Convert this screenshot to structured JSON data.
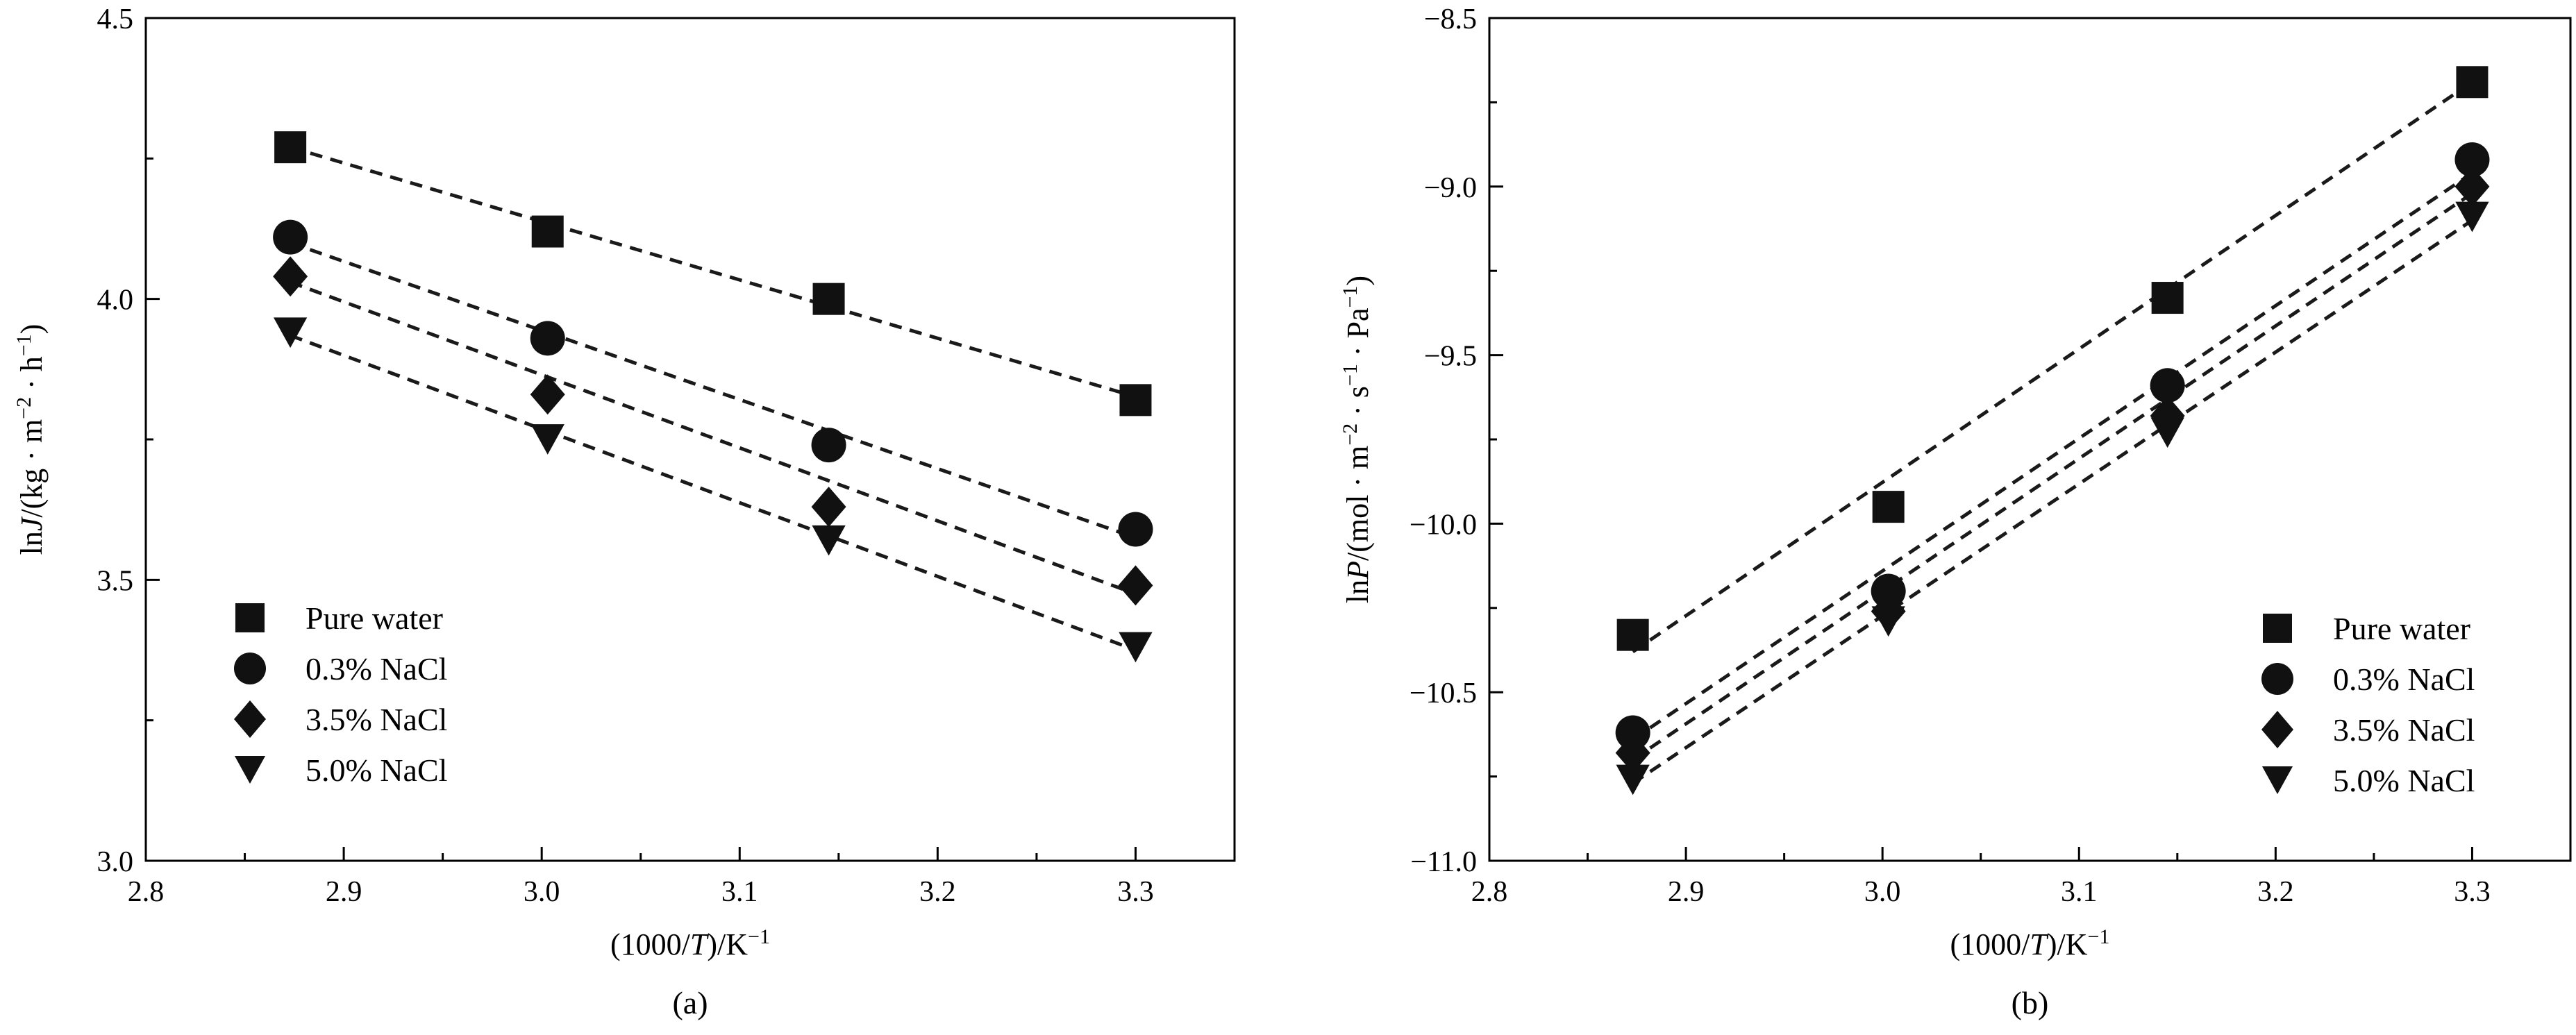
{
  "chart_data": [
    {
      "type": "scatter",
      "panel_label": "(a)",
      "xlabel_pre": "(1000/",
      "xlabel_it": "T",
      "xlabel_post": ")/K",
      "xlabel_sup": "−1",
      "ylabel_pre": "ln",
      "ylabel_it": "J",
      "ylabel_mid1": "/(kg · m",
      "ylabel_sup1": "−2",
      "ylabel_mid2": " · h",
      "ylabel_sup2": "−1",
      "ylabel_post": ")",
      "xlim": [
        2.8,
        3.35
      ],
      "ylim": [
        3.0,
        4.5
      ],
      "xticks": [
        2.8,
        2.9,
        3.0,
        3.1,
        3.2,
        3.3
      ],
      "xtick_labels": [
        "2.8",
        "2.9",
        "3.0",
        "3.1",
        "3.2",
        "3.3"
      ],
      "yticks": [
        3.0,
        3.5,
        4.0,
        4.5
      ],
      "ytick_labels": [
        "3.0",
        "3.5",
        "4.0",
        "4.5"
      ],
      "legend_position": "bottom-left",
      "x": [
        2.873,
        3.003,
        3.145,
        3.3
      ],
      "series": [
        {
          "name": "Pure water",
          "marker": "square",
          "values": [
            4.27,
            4.12,
            4.0,
            3.82
          ],
          "fit": [
            4.27,
            3.826
          ]
        },
        {
          "name": "0.3% NaCl",
          "marker": "circle",
          "values": [
            4.11,
            3.93,
            3.74,
            3.59
          ],
          "fit": [
            4.1,
            3.575
          ]
        },
        {
          "name": "3.5% NaCl",
          "marker": "diamond",
          "values": [
            4.04,
            3.83,
            3.63,
            3.49
          ],
          "fit": [
            4.03,
            3.475
          ]
        },
        {
          "name": "5.0% NaCl",
          "marker": "triangle-down",
          "values": [
            3.94,
            3.75,
            3.57,
            3.38
          ],
          "fit": [
            3.935,
            3.375
          ]
        }
      ]
    },
    {
      "type": "scatter",
      "panel_label": "(b)",
      "xlabel_pre": "(1000/",
      "xlabel_it": "T",
      "xlabel_post": ")/K",
      "xlabel_sup": "−1",
      "ylabel_pre": "ln",
      "ylabel_it": "P",
      "ylabel_mid1": "/(mol · m",
      "ylabel_sup1": "−2",
      "ylabel_mid2": " · s",
      "ylabel_sup2": "−1",
      "ylabel_mid3": " · Pa",
      "ylabel_sup3": "−1",
      "ylabel_post": ")",
      "xlim": [
        2.8,
        3.35
      ],
      "ylim": [
        -11.0,
        -8.5
      ],
      "xticks": [
        2.8,
        2.9,
        3.0,
        3.1,
        3.2,
        3.3
      ],
      "xtick_labels": [
        "2.8",
        "2.9",
        "3.0",
        "3.1",
        "3.2",
        "3.3"
      ],
      "yticks": [
        -11.0,
        -10.5,
        -10.0,
        -9.5,
        -9.0,
        -8.5
      ],
      "ytick_labels": [
        "−11.0",
        "−10.5",
        "−10.0",
        "−9.5",
        "−9.0",
        "−8.5"
      ],
      "legend_position": "bottom-right",
      "x": [
        2.873,
        3.003,
        3.145,
        3.3
      ],
      "series": [
        {
          "name": "Pure water",
          "marker": "square",
          "values": [
            -10.33,
            -9.95,
            -9.33,
            -8.69
          ],
          "fit": [
            -10.38,
            -8.69
          ]
        },
        {
          "name": "0.3% NaCl",
          "marker": "circle",
          "values": [
            -10.62,
            -10.2,
            -9.59,
            -8.92
          ],
          "fit": [
            -10.64,
            -8.96
          ]
        },
        {
          "name": "3.5% NaCl",
          "marker": "diamond",
          "values": [
            -10.68,
            -10.26,
            -9.68,
            -9.0
          ],
          "fit": [
            -10.7,
            -9.02
          ]
        },
        {
          "name": "5.0% NaCl",
          "marker": "triangle-down",
          "values": [
            -10.76,
            -10.29,
            -9.73,
            -9.09
          ],
          "fit": [
            -10.77,
            -9.1
          ]
        }
      ]
    }
  ]
}
